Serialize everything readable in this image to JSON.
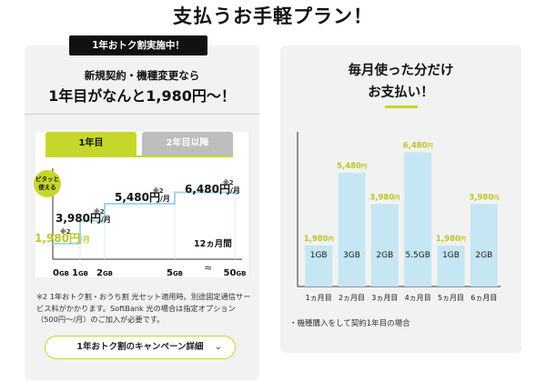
{
  "headline": "支払うお手軽プラン！",
  "left": {
    "promo_badge": "1年おトク割実施中！",
    "subheading": "新規契約・機種変更なら",
    "heading": "1年目がなんと1,980円〜！",
    "tabs": [
      "1年目",
      "2年目以降"
    ],
    "fit_badge": [
      "ピタッと",
      "使える"
    ],
    "duration_label": "12ヵ月間",
    "note_mark": "※2",
    "note": "1年おトク割・おうち割 光セット適用時。別途固定通信サービス料がかかります。SoftBank 光の場合は指定オプション（500円〜/月）のご加入が必要です。",
    "campaign_button": "1年おトク割のキャンペーン詳細"
  },
  "right": {
    "title_line1": "毎月使った分だけ",
    "title_line2": "お支払い！",
    "note": "・機種購入をして契約1年目の場合"
  },
  "chart_data": [
    {
      "type": "line",
      "subtype": "step",
      "x_ticks": [
        "0GB",
        "1GB",
        "2GB",
        "5GB",
        "50GB"
      ],
      "steps": [
        {
          "from": "0GB",
          "to": "1GB",
          "price": "1,980円",
          "unit": "/月",
          "mark": "※2"
        },
        {
          "from": "1GB",
          "to": "2GB",
          "price": "3,980円",
          "unit": "/月",
          "mark": "※2"
        },
        {
          "from": "2GB",
          "to": "5GB",
          "price": "5,480円",
          "unit": "/月",
          "mark": "※2"
        },
        {
          "from": "5GB",
          "to": "50GB",
          "price": "6,480円",
          "unit": "/月",
          "mark": "※2"
        }
      ],
      "values": [
        1980,
        3980,
        5480,
        6480
      ],
      "axis_break": true
    },
    {
      "type": "bar",
      "categories": [
        "1ヵ月目",
        "2ヵ月目",
        "3ヵ月目",
        "4ヵ月目",
        "5ヵ月目",
        "6ヵ月目"
      ],
      "data_labels": [
        "1GB",
        "3GB",
        "2GB",
        "5.5GB",
        "1GB",
        "2GB"
      ],
      "value_labels": [
        "1,980",
        "5,480",
        "3,980",
        "6,480",
        "1,980",
        "3,980"
      ],
      "value_unit": "円",
      "values": [
        1980,
        5480,
        3980,
        6480,
        1980,
        3980
      ]
    }
  ],
  "colors": {
    "accent": "#c6d72b",
    "bar_fill": "#c5e6f3",
    "card_bg": "#f2f2f2",
    "step_line": "#9ed6ea",
    "highlight_text": "#b9c925"
  }
}
